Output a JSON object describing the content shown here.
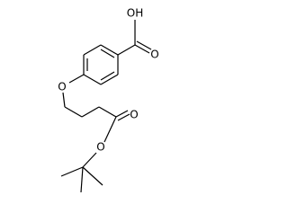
{
  "atoms": [
    {
      "label": "OH"
    },
    {
      "label": "O"
    },
    {
      "label": "O"
    },
    {
      "label": "O"
    },
    {
      "label": "O"
    }
  ]
}
